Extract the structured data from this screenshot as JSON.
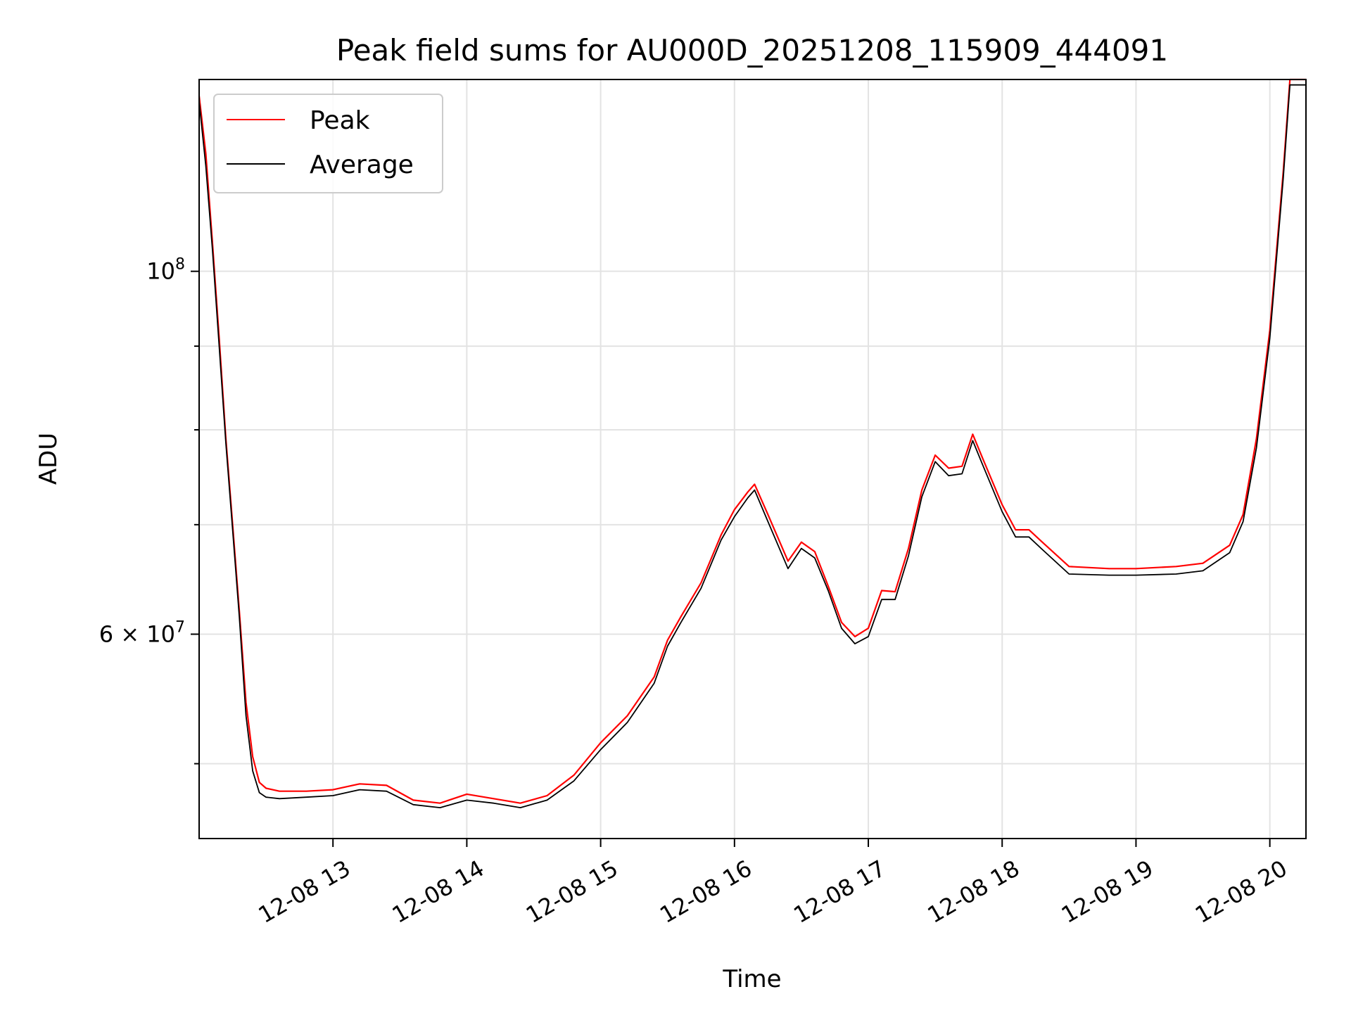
{
  "chart_data": {
    "type": "line",
    "title": "Peak field sums for AU000D_20251208_115909_444091",
    "xlabel": "Time",
    "ylabel": "ADU",
    "x_unit": "hours (decimal, 2025-12-08)",
    "xlim": [
      12.0,
      20.27
    ],
    "ylim": [
      45000000,
      131000000
    ],
    "yscale": "log",
    "grid": true,
    "legend_position": "upper left",
    "x_ticks": [
      {
        "value": 13,
        "label": "12-08 13"
      },
      {
        "value": 14,
        "label": "12-08 14"
      },
      {
        "value": 15,
        "label": "12-08 15"
      },
      {
        "value": 16,
        "label": "12-08 16"
      },
      {
        "value": 17,
        "label": "12-08 17"
      },
      {
        "value": 18,
        "label": "12-08 18"
      },
      {
        "value": 19,
        "label": "12-08 19"
      },
      {
        "value": 20,
        "label": "12-08 20"
      }
    ],
    "y_major_ticks": [
      {
        "value": 60000000,
        "base": "6 × 10",
        "exp": "7"
      },
      {
        "value": 100000000,
        "base": "10",
        "exp": "8"
      }
    ],
    "y_minor_ticks": [
      50000000,
      70000000,
      80000000,
      90000000
    ],
    "series": [
      {
        "name": "Peak",
        "color": "#ff0000",
        "x": [
          12.0,
          12.05,
          12.1,
          12.15,
          12.2,
          12.25,
          12.3,
          12.35,
          12.4,
          12.45,
          12.5,
          12.6,
          12.8,
          13.0,
          13.2,
          13.4,
          13.6,
          13.8,
          14.0,
          14.2,
          14.4,
          14.6,
          14.8,
          15.0,
          15.2,
          15.4,
          15.5,
          15.6,
          15.75,
          15.9,
          16.0,
          16.1,
          16.15,
          16.25,
          16.4,
          16.5,
          16.6,
          16.7,
          16.8,
          16.9,
          17.0,
          17.1,
          17.2,
          17.3,
          17.4,
          17.5,
          17.6,
          17.7,
          17.78,
          17.85,
          18.0,
          18.1,
          18.2,
          18.3,
          18.5,
          18.8,
          19.0,
          19.3,
          19.5,
          19.7,
          19.8,
          19.9,
          20.0,
          20.1,
          20.15,
          20.27
        ],
        "y": [
          128000000,
          118000000,
          104000000,
          91000000,
          79000000,
          70000000,
          62000000,
          54500000,
          50500000,
          48700000,
          48300000,
          48100000,
          48100000,
          48200000,
          48600000,
          48500000,
          47500000,
          47300000,
          47900000,
          47600000,
          47300000,
          47800000,
          49200000,
          51500000,
          53500000,
          56500000,
          59500000,
          61500000,
          64500000,
          69000000,
          71500000,
          73300000,
          74100000,
          71000000,
          66500000,
          68300000,
          67400000,
          64200000,
          61000000,
          59800000,
          60500000,
          63800000,
          63700000,
          67700000,
          73500000,
          77200000,
          75800000,
          76000000,
          79500000,
          77000000,
          72000000,
          69500000,
          69500000,
          68300000,
          66000000,
          65800000,
          65800000,
          66000000,
          66300000,
          68000000,
          71000000,
          79000000,
          92000000,
          115000000,
          131000000,
          131000000
        ]
      },
      {
        "name": "Average",
        "color": "#000000",
        "x": [
          12.0,
          12.05,
          12.1,
          12.15,
          12.2,
          12.25,
          12.3,
          12.35,
          12.4,
          12.45,
          12.5,
          12.6,
          12.8,
          13.0,
          13.2,
          13.4,
          13.6,
          13.8,
          14.0,
          14.2,
          14.4,
          14.6,
          14.8,
          15.0,
          15.2,
          15.4,
          15.5,
          15.6,
          15.75,
          15.9,
          16.0,
          16.1,
          16.15,
          16.25,
          16.4,
          16.5,
          16.6,
          16.7,
          16.8,
          16.9,
          17.0,
          17.1,
          17.2,
          17.3,
          17.4,
          17.5,
          17.6,
          17.7,
          17.78,
          17.85,
          18.0,
          18.1,
          18.2,
          18.3,
          18.5,
          18.8,
          19.0,
          19.3,
          19.5,
          19.7,
          19.8,
          19.9,
          20.0,
          20.1,
          20.15,
          20.27
        ],
        "y": [
          127000000,
          116000000,
          103000000,
          90000000,
          78500000,
          69500000,
          61500000,
          53500000,
          49500000,
          48000000,
          47700000,
          47600000,
          47700000,
          47800000,
          48200000,
          48100000,
          47200000,
          47000000,
          47500000,
          47300000,
          47000000,
          47500000,
          48800000,
          51000000,
          53000000,
          56000000,
          59000000,
          61000000,
          64000000,
          68500000,
          70800000,
          72700000,
          73500000,
          70300000,
          65800000,
          67700000,
          66800000,
          63800000,
          60500000,
          59200000,
          59800000,
          63000000,
          63000000,
          67000000,
          72800000,
          76500000,
          75000000,
          75200000,
          78800000,
          76300000,
          71300000,
          68800000,
          68800000,
          67600000,
          65300000,
          65200000,
          65200000,
          65300000,
          65600000,
          67300000,
          70300000,
          78000000,
          91000000,
          114000000,
          130000000,
          130000000
        ]
      }
    ]
  }
}
